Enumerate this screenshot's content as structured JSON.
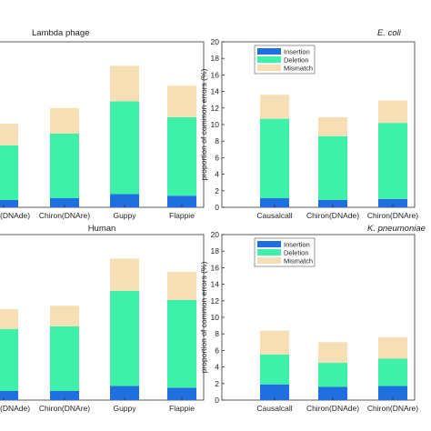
{
  "colors": {
    "insertion": "#1f6fe0",
    "deletion": "#3ef0a8",
    "mismatch": "#f6dfb5"
  },
  "chart_data": [
    {
      "type": "bar",
      "stacked": true,
      "title": "Lambda phage",
      "title_style": "normal",
      "ylabel": "",
      "ylim": [
        0,
        20
      ],
      "yticks": [],
      "legend": false,
      "categories": [
        "Chiron(DNAde)",
        "Chiron(DNAre)",
        "Guppy",
        "Flappie"
      ],
      "series": [
        {
          "name": "Insertion",
          "values": [
            0.9,
            1.1,
            1.6,
            1.4
          ]
        },
        {
          "name": "Deletion",
          "values": [
            6.6,
            7.8,
            11.2,
            9.5
          ]
        },
        {
          "name": "Mismatch",
          "values": [
            2.6,
            3.1,
            4.3,
            3.8
          ]
        }
      ]
    },
    {
      "type": "bar",
      "stacked": true,
      "title": "E. coli",
      "title_style": "italic",
      "ylabel": "proportion of common errors (%)",
      "ylim": [
        0,
        20
      ],
      "yticks": [
        0,
        2,
        4,
        6,
        8,
        10,
        12,
        14,
        16,
        18,
        20
      ],
      "legend": true,
      "legend_position": "top-left",
      "categories": [
        "Causalcall",
        "Chiron(DNAde)",
        "Chiron(DNAre)"
      ],
      "series": [
        {
          "name": "Insertion",
          "values": [
            1.1,
            0.9,
            1.0
          ]
        },
        {
          "name": "Deletion",
          "values": [
            9.6,
            7.7,
            9.2
          ]
        },
        {
          "name": "Mismatch",
          "values": [
            2.9,
            2.3,
            2.7
          ]
        }
      ]
    },
    {
      "type": "bar",
      "stacked": true,
      "title": "Human",
      "title_style": "normal",
      "ylabel": "",
      "ylim": [
        0,
        20
      ],
      "yticks": [],
      "legend": false,
      "categories": [
        "Chiron(DNAde)",
        "Chiron(DNAre)",
        "Guppy",
        "Flappie"
      ],
      "series": [
        {
          "name": "Insertion",
          "values": [
            1.1,
            1.1,
            1.7,
            1.5
          ]
        },
        {
          "name": "Deletion",
          "values": [
            7.5,
            7.8,
            11.5,
            10.6
          ]
        },
        {
          "name": "Mismatch",
          "values": [
            2.4,
            2.5,
            3.9,
            3.4
          ]
        }
      ]
    },
    {
      "type": "bar",
      "stacked": true,
      "title": "K. pneumoniae",
      "title_style": "italic",
      "ylabel": "proportion of common errors (%)",
      "ylim": [
        0,
        20
      ],
      "yticks": [
        0,
        2,
        4,
        6,
        8,
        10,
        12,
        14,
        16,
        18,
        20
      ],
      "legend": true,
      "legend_position": "top-left",
      "categories": [
        "Causalcall",
        "Chiron(DNAde)",
        "Chiron(DNAre)"
      ],
      "series": [
        {
          "name": "Insertion",
          "values": [
            1.9,
            1.6,
            1.7
          ]
        },
        {
          "name": "Deletion",
          "values": [
            3.6,
            2.9,
            3.3
          ]
        },
        {
          "name": "Mismatch",
          "values": [
            2.9,
            2.5,
            2.6
          ]
        }
      ]
    }
  ]
}
